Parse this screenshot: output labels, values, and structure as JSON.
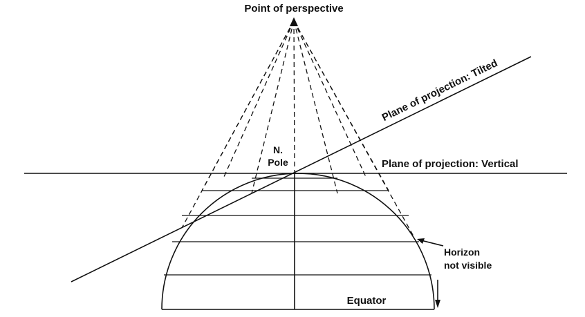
{
  "labels": {
    "point_of_perspective": "Point of perspective",
    "plane_tilted": "Plane of projection:  Tilted",
    "plane_vertical": "Plane of projection:  Vertical",
    "n_pole_line1": "N.",
    "n_pole_line2": "Pole",
    "horizon_line1": "Horizon",
    "horizon_line2": "not visible",
    "equator": "Equator"
  },
  "colors": {
    "ink": "#111111",
    "background": "#ffffff"
  }
}
